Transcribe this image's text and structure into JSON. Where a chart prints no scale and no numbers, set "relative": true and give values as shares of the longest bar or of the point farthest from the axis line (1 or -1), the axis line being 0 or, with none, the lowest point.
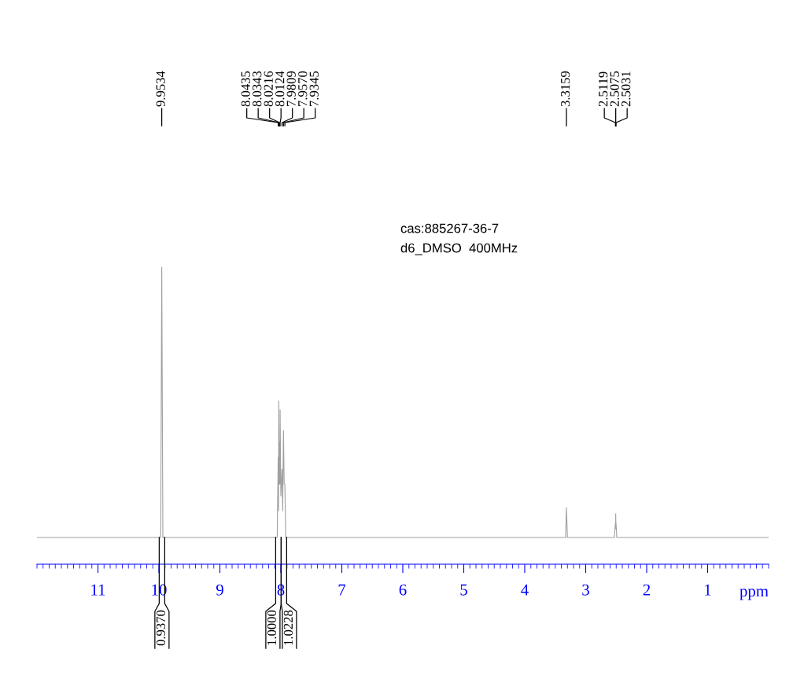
{
  "chart_data": {
    "type": "line",
    "relative": true,
    "xlabel": "ppm",
    "xlim": [
      12,
      0
    ],
    "xticks": [
      11,
      10,
      9,
      8,
      7,
      6,
      5,
      4,
      3,
      2,
      1
    ],
    "series": [
      {
        "color": "#a0a0a0",
        "x": [
          12,
          10.3,
          10.0,
          9.97,
          9.9534,
          9.935,
          9.9,
          8.3,
          8.06,
          8.0435,
          8.038,
          8.0343,
          8.028,
          8.0216,
          8.017,
          8.0124,
          8.0,
          7.9809,
          7.97,
          7.957,
          7.945,
          7.9345,
          7.92,
          7.9,
          3.5,
          3.33,
          3.3159,
          3.3,
          2.53,
          2.5119,
          2.509,
          2.5075,
          2.505,
          2.5031,
          2.49,
          0
        ],
        "values": [
          0.09,
          0.09,
          0.09,
          0.09,
          1.0,
          0.09,
          0.09,
          0.09,
          0.09,
          0.36,
          0.18,
          0.55,
          0.27,
          0.41,
          0.27,
          0.52,
          0.23,
          0.32,
          0.18,
          0.45,
          0.27,
          0.27,
          0.09,
          0.09,
          0.09,
          0.09,
          0.19,
          0.09,
          0.09,
          0.14,
          0.12,
          0.17,
          0.12,
          0.14,
          0.09,
          0.09
        ]
      }
    ],
    "grid": false,
    "legend": false,
    "marker": "none",
    "line_style": "solid",
    "annotations": [
      {
        "text": "0.9370",
        "x": 9.95,
        "y": 0.09
      },
      {
        "text": "1.0000",
        "x": 8.04,
        "y": 0.09
      },
      {
        "text": "1.0228",
        "x": 7.95,
        "y": 0.09
      },
      "9.9534",
      "8.0435",
      "8.0343",
      "8.0216",
      "8.0124",
      "7.9809",
      "7.9570",
      "7.9345",
      "3.3159",
      "2.5119",
      "2.5075",
      "2.5031",
      "cas:885267-36-7",
      "d6_DMSO  400MHz"
    ]
  }
}
